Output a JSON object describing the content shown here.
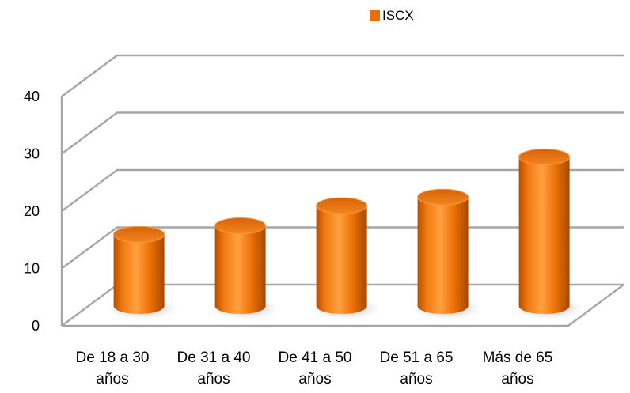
{
  "chart_data": {
    "type": "bar",
    "style": "3d-cylinder",
    "categories": [
      [
        "De 18 a 30",
        "años"
      ],
      [
        "De 31 a 40",
        "años"
      ],
      [
        "De 41 a 50",
        "años"
      ],
      [
        "De 51 a 65",
        "años"
      ],
      [
        "Más de 65",
        "años"
      ]
    ],
    "series": [
      {
        "name": "ISCX",
        "values": [
          12.5,
          14,
          17.5,
          19,
          26
        ],
        "color": "#E8700A"
      }
    ],
    "ylim": [
      0,
      40
    ],
    "yticks": [
      "0",
      "10",
      "20",
      "30",
      "40"
    ],
    "grid": true,
    "legend": "top-center"
  }
}
